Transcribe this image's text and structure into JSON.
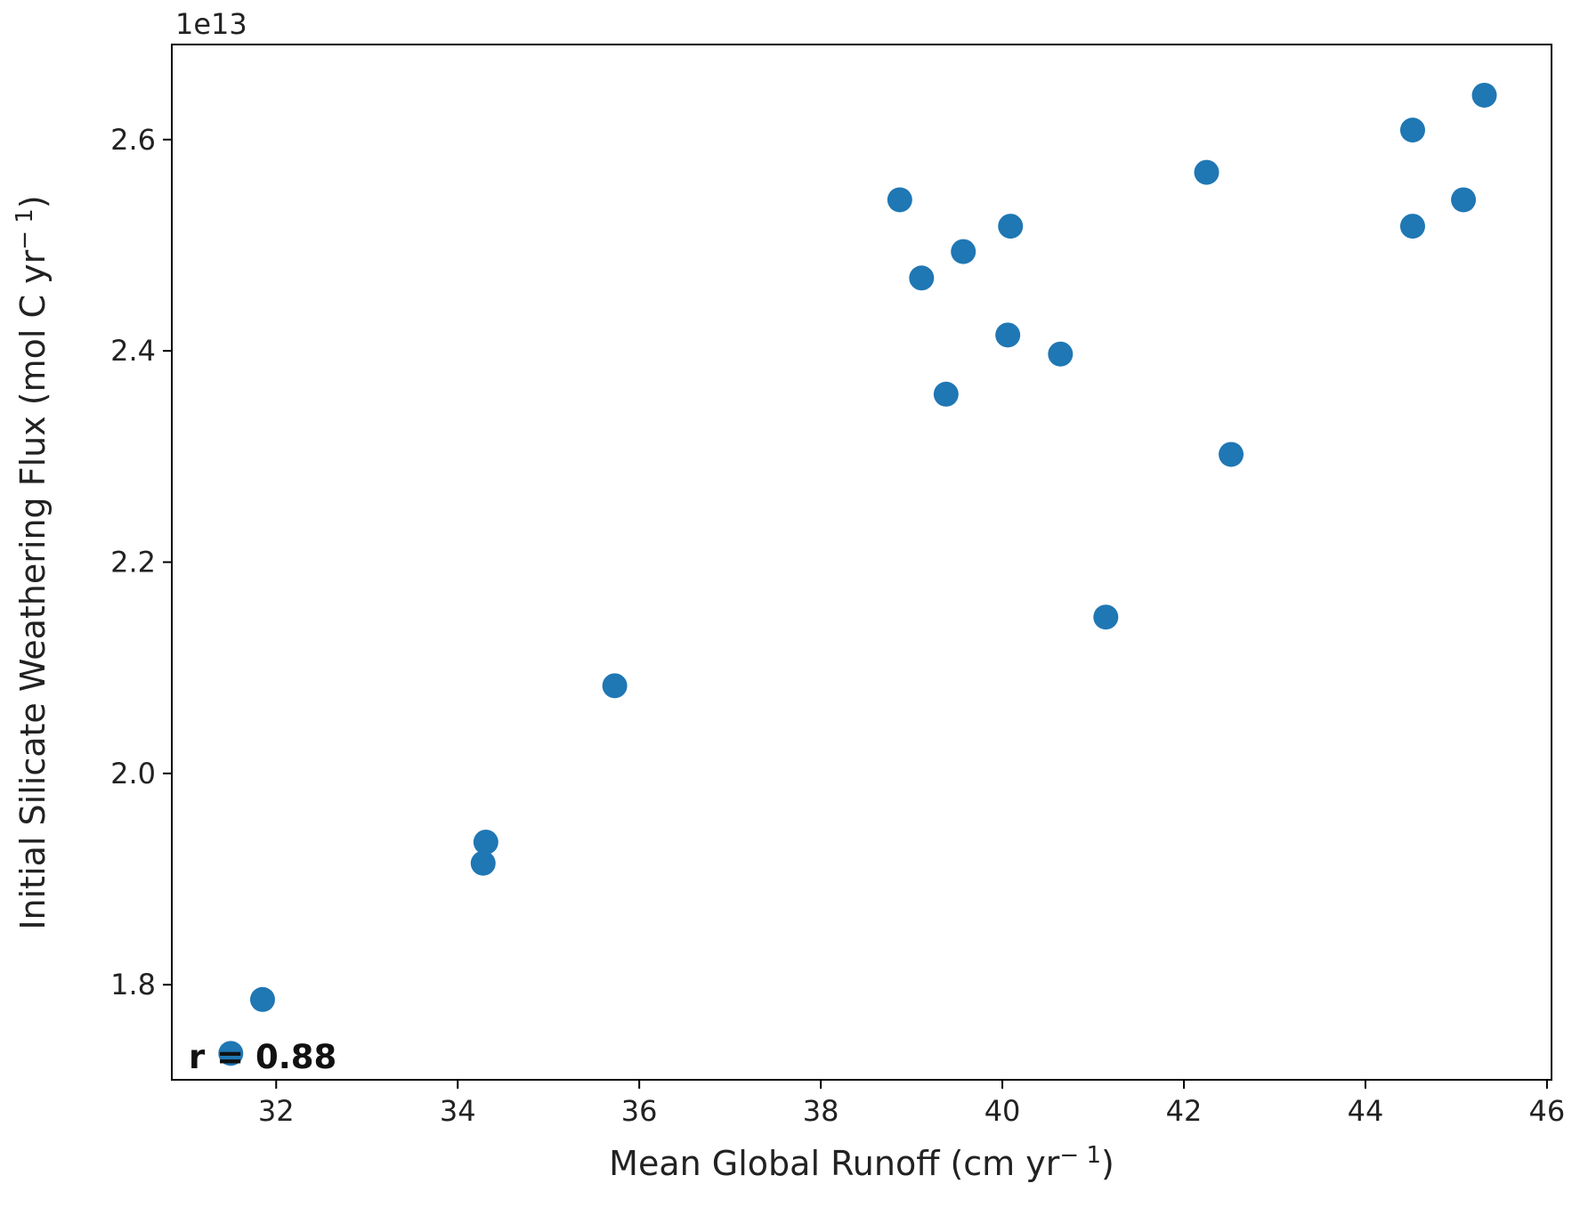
{
  "chart_data": {
    "type": "scatter",
    "xlabel": "Mean Global Runoff (cm yr",
    "xlabel_sup": "− 1",
    "xlabel_tail": ")",
    "ylabel": "Initial Silicate Weathering Flux (mol C yr",
    "ylabel_sup": "− 1",
    "ylabel_tail": ")",
    "y_offset_label": "1e13",
    "annotation": "r = 0.88",
    "xlim": [
      30.85,
      46.05
    ],
    "ylim": [
      1.71,
      2.69
    ],
    "xticks": [
      32,
      34,
      36,
      38,
      40,
      42,
      44,
      46
    ],
    "yticks": [
      1.8,
      2.0,
      2.2,
      2.4,
      2.6
    ],
    "xtick_labels": [
      "32",
      "34",
      "36",
      "38",
      "40",
      "42",
      "44",
      "46"
    ],
    "ytick_labels": [
      "1.8",
      "2.0",
      "2.2",
      "2.4",
      "2.6"
    ],
    "marker_color": "#1f77b4",
    "grid": false,
    "points": [
      {
        "x": 31.5,
        "y": 1.735
      },
      {
        "x": 31.85,
        "y": 1.786
      },
      {
        "x": 34.28,
        "y": 1.915
      },
      {
        "x": 34.31,
        "y": 1.935
      },
      {
        "x": 35.73,
        "y": 2.083
      },
      {
        "x": 38.87,
        "y": 2.543
      },
      {
        "x": 39.11,
        "y": 2.469
      },
      {
        "x": 39.38,
        "y": 2.359
      },
      {
        "x": 39.57,
        "y": 2.494
      },
      {
        "x": 40.06,
        "y": 2.415
      },
      {
        "x": 40.09,
        "y": 2.518
      },
      {
        "x": 40.64,
        "y": 2.397
      },
      {
        "x": 41.14,
        "y": 2.148
      },
      {
        "x": 42.25,
        "y": 2.569
      },
      {
        "x": 42.52,
        "y": 2.302
      },
      {
        "x": 44.52,
        "y": 2.609
      },
      {
        "x": 44.52,
        "y": 2.518
      },
      {
        "x": 45.08,
        "y": 2.543
      },
      {
        "x": 45.31,
        "y": 2.642
      }
    ]
  }
}
